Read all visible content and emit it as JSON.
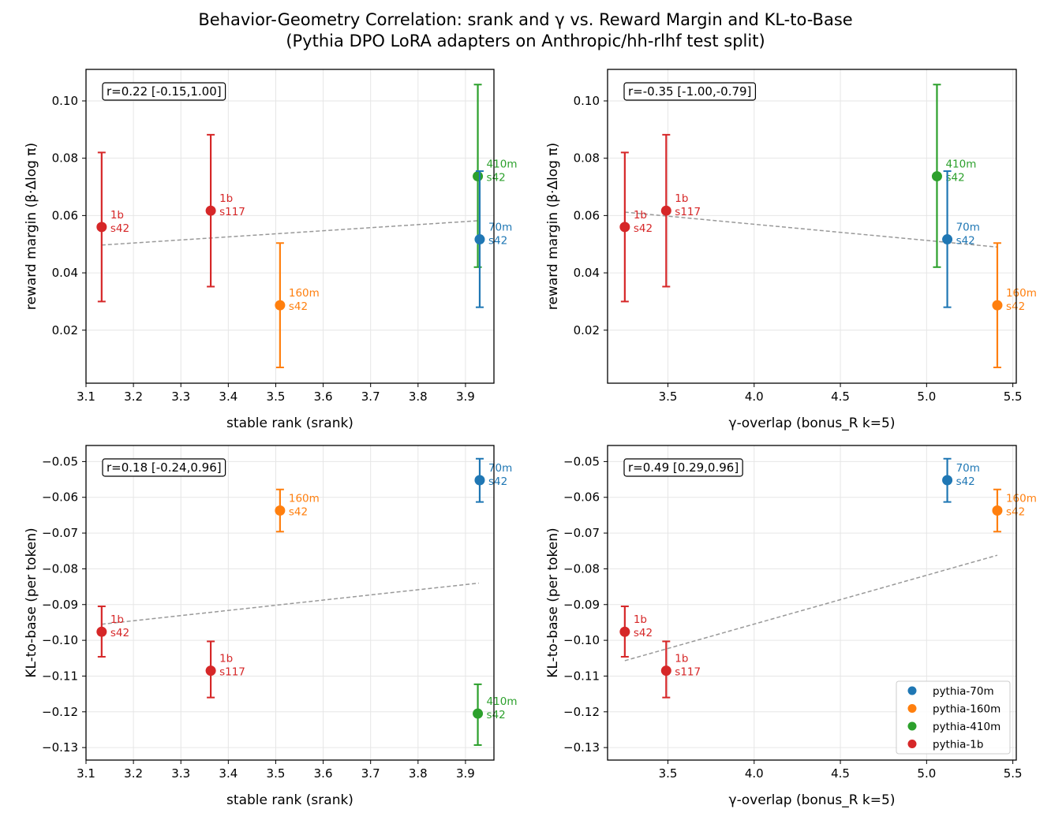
{
  "figure": {
    "title_line1": "Behavior-Geometry Correlation: srank and γ vs. Reward Margin and KL-to-Base",
    "title_line2": "(Pythia DPO LoRA adapters on Anthropic/hh-rlhf test split)"
  },
  "colors": {
    "pythia-70m": "#1f77b4",
    "pythia-160m": "#ff7f0e",
    "pythia-410m": "#2ca02c",
    "pythia-1b": "#d62728",
    "fit": "#999999",
    "grid": "#e6e6e6"
  },
  "legend": {
    "placement": "lower right of bottom-right panel",
    "entries": [
      "pythia-70m",
      "pythia-160m",
      "pythia-410m",
      "pythia-1b"
    ]
  },
  "chart_data": [
    {
      "type": "scatter",
      "panel": "top-left",
      "xlabel": "stable rank (srank)",
      "ylabel": "reward margin (β·Δlog π)",
      "xlim": [
        3.1,
        3.96
      ],
      "ylim": [
        0.0015,
        0.111
      ],
      "xticks": [
        3.1,
        3.2,
        3.3,
        3.4,
        3.5,
        3.6,
        3.7,
        3.8,
        3.9
      ],
      "yticks": [
        0.02,
        0.04,
        0.06,
        0.08,
        0.1
      ],
      "xtick_labels": [
        "3.1",
        "3.2",
        "3.3",
        "3.4",
        "3.5",
        "3.6",
        "3.7",
        "3.8",
        "3.9"
      ],
      "ytick_labels": [
        "0.02",
        "0.04",
        "0.06",
        "0.08",
        "0.10"
      ],
      "annotation": "r=0.22 [-0.15,1.00]",
      "grid": true,
      "fit_line": {
        "x": [
          3.133,
          3.928
        ],
        "y": [
          0.0497,
          0.0582
        ]
      },
      "points": [
        {
          "series": "pythia-1b",
          "label": [
            "1b",
            "s42"
          ],
          "x": 3.133,
          "y": 0.056,
          "err_low": 0.03,
          "err_high": 0.082
        },
        {
          "series": "pythia-1b",
          "label": [
            "1b",
            "s117"
          ],
          "x": 3.363,
          "y": 0.0617,
          "err_low": 0.0352,
          "err_high": 0.0882
        },
        {
          "series": "pythia-160m",
          "label": [
            "160m",
            "s42"
          ],
          "x": 3.509,
          "y": 0.0287,
          "err_low": 0.007,
          "err_high": 0.0504
        },
        {
          "series": "pythia-410m",
          "label": [
            "410m",
            "s42"
          ],
          "x": 3.926,
          "y": 0.0737,
          "err_low": 0.042,
          "err_high": 0.1057
        },
        {
          "series": "pythia-70m",
          "label": [
            "70m",
            "s42"
          ],
          "x": 3.93,
          "y": 0.0517,
          "err_low": 0.028,
          "err_high": 0.0755
        }
      ]
    },
    {
      "type": "scatter",
      "panel": "top-right",
      "xlabel": "γ-overlap (bonus_R k=5)",
      "ylabel": "reward margin (β·Δlog π)",
      "xlim": [
        3.15,
        5.52
      ],
      "ylim": [
        0.0015,
        0.111
      ],
      "xticks": [
        3.5,
        4.0,
        4.5,
        5.0,
        5.5
      ],
      "yticks": [
        0.02,
        0.04,
        0.06,
        0.08,
        0.1
      ],
      "xtick_labels": [
        "3.5",
        "4.0",
        "4.5",
        "5.0",
        "5.5"
      ],
      "ytick_labels": [
        "0.02",
        "0.04",
        "0.06",
        "0.08",
        "0.10"
      ],
      "annotation": "r=-0.35 [-1.00,-0.79]",
      "grid": true,
      "fit_line": {
        "x": [
          3.25,
          5.41
        ],
        "y": [
          0.0612,
          0.049
        ]
      },
      "points": [
        {
          "series": "pythia-1b",
          "label": [
            "1b",
            "s42"
          ],
          "x": 3.25,
          "y": 0.056,
          "err_low": 0.03,
          "err_high": 0.082
        },
        {
          "series": "pythia-1b",
          "label": [
            "1b",
            "s117"
          ],
          "x": 3.49,
          "y": 0.0617,
          "err_low": 0.0352,
          "err_high": 0.0882
        },
        {
          "series": "pythia-410m",
          "label": [
            "410m",
            "s42"
          ],
          "x": 5.06,
          "y": 0.0737,
          "err_low": 0.042,
          "err_high": 0.1057
        },
        {
          "series": "pythia-70m",
          "label": [
            "70m",
            "s42"
          ],
          "x": 5.12,
          "y": 0.0517,
          "err_low": 0.028,
          "err_high": 0.0755
        },
        {
          "series": "pythia-160m",
          "label": [
            "160m",
            "s42"
          ],
          "x": 5.41,
          "y": 0.0287,
          "err_low": 0.007,
          "err_high": 0.0504
        }
      ]
    },
    {
      "type": "scatter",
      "panel": "bottom-left",
      "xlabel": "stable rank (srank)",
      "ylabel": "KL-to-base (per token)",
      "xlim": [
        3.1,
        3.96
      ],
      "ylim": [
        -0.1335,
        -0.0455
      ],
      "xticks": [
        3.1,
        3.2,
        3.3,
        3.4,
        3.5,
        3.6,
        3.7,
        3.8,
        3.9
      ],
      "yticks": [
        -0.13,
        -0.12,
        -0.11,
        -0.1,
        -0.09,
        -0.08,
        -0.07,
        -0.06,
        -0.05
      ],
      "xtick_labels": [
        "3.1",
        "3.2",
        "3.3",
        "3.4",
        "3.5",
        "3.6",
        "3.7",
        "3.8",
        "3.9"
      ],
      "ytick_labels": [
        "−0.13",
        "−0.12",
        "−0.11",
        "−0.10",
        "−0.09",
        "−0.08",
        "−0.07",
        "−0.06",
        "−0.05"
      ],
      "annotation": "r=0.18 [-0.24,0.96]",
      "grid": true,
      "fit_line": {
        "x": [
          3.133,
          3.928
        ],
        "y": [
          -0.0955,
          -0.084
        ]
      },
      "points": [
        {
          "series": "pythia-1b",
          "label": [
            "1b",
            "s42"
          ],
          "x": 3.133,
          "y": -0.0976,
          "err_low": -0.1046,
          "err_high": -0.0905
        },
        {
          "series": "pythia-1b",
          "label": [
            "1b",
            "s117"
          ],
          "x": 3.363,
          "y": -0.1085,
          "err_low": -0.116,
          "err_high": -0.1003
        },
        {
          "series": "pythia-160m",
          "label": [
            "160m",
            "s42"
          ],
          "x": 3.509,
          "y": -0.0637,
          "err_low": -0.0696,
          "err_high": -0.0578
        },
        {
          "series": "pythia-410m",
          "label": [
            "410m",
            "s42"
          ],
          "x": 3.926,
          "y": -0.1205,
          "err_low": -0.1293,
          "err_high": -0.1123
        },
        {
          "series": "pythia-70m",
          "label": [
            "70m",
            "s42"
          ],
          "x": 3.93,
          "y": -0.0552,
          "err_low": -0.0613,
          "err_high": -0.0492
        }
      ]
    },
    {
      "type": "scatter",
      "panel": "bottom-right",
      "xlabel": "γ-overlap (bonus_R k=5)",
      "ylabel": "KL-to-base (per token)",
      "xlim": [
        3.15,
        5.52
      ],
      "ylim": [
        -0.1335,
        -0.0455
      ],
      "xticks": [
        3.5,
        4.0,
        4.5,
        5.0,
        5.5
      ],
      "yticks": [
        -0.13,
        -0.12,
        -0.11,
        -0.1,
        -0.09,
        -0.08,
        -0.07,
        -0.06,
        -0.05
      ],
      "xtick_labels": [
        "3.5",
        "4.0",
        "4.5",
        "5.0",
        "5.5"
      ],
      "ytick_labels": [
        "−0.13",
        "−0.12",
        "−0.11",
        "−0.10",
        "−0.09",
        "−0.08",
        "−0.07",
        "−0.06",
        "−0.05"
      ],
      "annotation": "r=0.49 [0.29,0.96]",
      "grid": true,
      "fit_line": {
        "x": [
          3.25,
          5.41
        ],
        "y": [
          -0.1057,
          -0.0762
        ]
      },
      "points": [
        {
          "series": "pythia-1b",
          "label": [
            "1b",
            "s42"
          ],
          "x": 3.25,
          "y": -0.0976,
          "err_low": -0.1046,
          "err_high": -0.0905
        },
        {
          "series": "pythia-1b",
          "label": [
            "1b",
            "s117"
          ],
          "x": 3.49,
          "y": -0.1085,
          "err_low": -0.116,
          "err_high": -0.1003
        },
        {
          "series": "pythia-70m",
          "label": [
            "70m",
            "s42"
          ],
          "x": 5.12,
          "y": -0.0552,
          "err_low": -0.0613,
          "err_high": -0.0492
        },
        {
          "series": "pythia-160m",
          "label": [
            "160m",
            "s42"
          ],
          "x": 5.41,
          "y": -0.0637,
          "err_low": -0.0696,
          "err_high": -0.0578
        }
      ]
    }
  ]
}
